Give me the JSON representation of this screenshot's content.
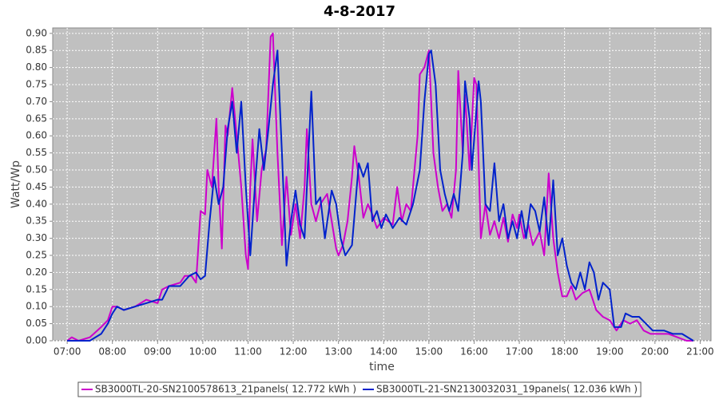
{
  "chart_data": {
    "type": "line",
    "title": "4-8-2017",
    "xlabel": "time",
    "ylabel": "Watt/Wp",
    "xlim": [
      6.68,
      21.24
    ],
    "ylim": [
      0,
      0.916
    ],
    "grid": true,
    "background": "#c0c0c0",
    "legend": "bottom",
    "xticks": [
      {
        "value": 7,
        "label": "07:00"
      },
      {
        "value": 8,
        "label": "08:00"
      },
      {
        "value": 9,
        "label": "09:00"
      },
      {
        "value": 10,
        "label": "10:00"
      },
      {
        "value": 11,
        "label": "11:00"
      },
      {
        "value": 12,
        "label": "12:00"
      },
      {
        "value": 13,
        "label": "13:00"
      },
      {
        "value": 14,
        "label": "14:00"
      },
      {
        "value": 15,
        "label": "15:00"
      },
      {
        "value": 16,
        "label": "16:00"
      },
      {
        "value": 17,
        "label": "17:00"
      },
      {
        "value": 18,
        "label": "18:00"
      },
      {
        "value": 19,
        "label": "19:00"
      },
      {
        "value": 20,
        "label": "20:00"
      },
      {
        "value": 21,
        "label": "21:00"
      }
    ],
    "yticks": [
      {
        "value": 0,
        "label": "0.00"
      },
      0.05,
      {
        "value": 0.1,
        "label": "0.10"
      },
      0.15,
      {
        "value": 0.2,
        "label": "0.20"
      },
      0.25,
      {
        "value": 0.3,
        "label": "0.30"
      },
      0.35,
      {
        "value": 0.4,
        "label": "0.40"
      },
      0.45,
      {
        "value": 0.5,
        "label": "0.50"
      },
      0.55,
      {
        "value": 0.6,
        "label": "0.60"
      },
      0.65,
      {
        "value": 0.7,
        "label": "0.70"
      },
      0.75,
      {
        "value": 0.8,
        "label": "0.80"
      },
      0.85,
      {
        "value": 0.9,
        "label": "0.90"
      }
    ],
    "series": [
      {
        "name": "SB3000TL-20-SN2100578613_21panels( 12.772 kWh )",
        "color": "#cc00cc",
        "x": [
          7.0,
          7.1,
          7.25,
          7.5,
          7.75,
          7.9,
          8.0,
          8.1,
          8.25,
          8.5,
          8.75,
          9.0,
          9.1,
          9.25,
          9.5,
          9.6,
          9.75,
          9.85,
          9.95,
          10.05,
          10.1,
          10.2,
          10.3,
          10.35,
          10.42,
          10.5,
          10.55,
          10.65,
          10.75,
          10.85,
          10.95,
          11.0,
          11.05,
          11.1,
          11.2,
          11.3,
          11.4,
          11.5,
          11.55,
          11.65,
          11.75,
          11.85,
          11.95,
          12.05,
          12.15,
          12.25,
          12.3,
          12.4,
          12.5,
          12.6,
          12.75,
          12.85,
          12.95,
          13.0,
          13.1,
          13.2,
          13.3,
          13.35,
          13.45,
          13.55,
          13.65,
          13.75,
          13.85,
          14.0,
          14.1,
          14.2,
          14.3,
          14.4,
          14.5,
          14.6,
          14.75,
          14.8,
          14.9,
          15.0,
          15.05,
          15.1,
          15.2,
          15.3,
          15.4,
          15.5,
          15.6,
          15.65,
          15.75,
          15.8,
          15.9,
          16.0,
          16.05,
          16.15,
          16.25,
          16.35,
          16.45,
          16.55,
          16.65,
          16.75,
          16.85,
          16.95,
          17.0,
          17.1,
          17.2,
          17.3,
          17.45,
          17.55,
          17.65,
          17.75,
          17.85,
          17.95,
          18.05,
          18.15,
          18.25,
          18.4,
          18.55,
          18.7,
          18.85,
          19.0,
          19.15,
          19.3,
          19.45,
          19.6,
          19.75,
          19.9,
          20.1,
          20.3,
          20.5,
          20.7,
          20.85
        ],
        "values": [
          0.0,
          0.01,
          0.0,
          0.01,
          0.04,
          0.06,
          0.1,
          0.1,
          0.09,
          0.1,
          0.12,
          0.11,
          0.15,
          0.16,
          0.17,
          0.19,
          0.19,
          0.17,
          0.38,
          0.37,
          0.5,
          0.45,
          0.65,
          0.45,
          0.27,
          0.63,
          0.6,
          0.74,
          0.6,
          0.45,
          0.25,
          0.21,
          0.45,
          0.59,
          0.35,
          0.5,
          0.56,
          0.89,
          0.9,
          0.55,
          0.28,
          0.48,
          0.31,
          0.4,
          0.3,
          0.45,
          0.62,
          0.4,
          0.35,
          0.4,
          0.43,
          0.35,
          0.27,
          0.25,
          0.28,
          0.35,
          0.48,
          0.57,
          0.48,
          0.36,
          0.4,
          0.37,
          0.33,
          0.36,
          0.35,
          0.34,
          0.45,
          0.35,
          0.4,
          0.38,
          0.6,
          0.78,
          0.8,
          0.85,
          0.7,
          0.55,
          0.45,
          0.38,
          0.4,
          0.36,
          0.5,
          0.79,
          0.55,
          0.72,
          0.5,
          0.77,
          0.75,
          0.3,
          0.4,
          0.31,
          0.35,
          0.3,
          0.36,
          0.29,
          0.37,
          0.33,
          0.37,
          0.3,
          0.34,
          0.28,
          0.32,
          0.25,
          0.49,
          0.3,
          0.2,
          0.13,
          0.13,
          0.16,
          0.12,
          0.14,
          0.15,
          0.09,
          0.07,
          0.06,
          0.03,
          0.06,
          0.05,
          0.06,
          0.03,
          0.02,
          0.02,
          0.02,
          0.01,
          0.0,
          0.0
        ]
      },
      {
        "name": "SB3000TL-21-SN2130032031_19panels( 12.036 kWh )",
        "color": "#0022cc",
        "x": [
          7.0,
          7.25,
          7.5,
          7.75,
          7.9,
          8.0,
          8.1,
          8.25,
          8.5,
          8.75,
          9.0,
          9.1,
          9.25,
          9.5,
          9.7,
          9.85,
          9.95,
          10.05,
          10.15,
          10.25,
          10.35,
          10.45,
          10.55,
          10.65,
          10.75,
          10.85,
          10.95,
          11.05,
          11.15,
          11.25,
          11.35,
          11.45,
          11.55,
          11.65,
          11.75,
          11.85,
          11.95,
          12.05,
          12.15,
          12.25,
          12.4,
          12.5,
          12.6,
          12.7,
          12.85,
          12.95,
          13.05,
          13.15,
          13.3,
          13.45,
          13.55,
          13.65,
          13.75,
          13.85,
          13.95,
          14.05,
          14.2,
          14.35,
          14.5,
          14.65,
          14.8,
          14.9,
          15.0,
          15.05,
          15.15,
          15.25,
          15.35,
          15.45,
          15.55,
          15.65,
          15.75,
          15.8,
          15.9,
          15.95,
          16.1,
          16.15,
          16.25,
          16.35,
          16.45,
          16.55,
          16.65,
          16.75,
          16.85,
          16.95,
          17.05,
          17.15,
          17.25,
          17.35,
          17.45,
          17.55,
          17.65,
          17.75,
          17.85,
          17.95,
          18.05,
          18.15,
          18.25,
          18.35,
          18.45,
          18.55,
          18.65,
          18.75,
          18.85,
          19.0,
          19.1,
          19.25,
          19.35,
          19.5,
          19.65,
          19.8,
          19.95,
          20.2,
          20.4,
          20.6,
          20.85
        ],
        "values": [
          0.0,
          0.0,
          0.0,
          0.02,
          0.05,
          0.08,
          0.1,
          0.09,
          0.1,
          0.11,
          0.12,
          0.12,
          0.16,
          0.16,
          0.19,
          0.2,
          0.18,
          0.19,
          0.35,
          0.48,
          0.4,
          0.45,
          0.62,
          0.7,
          0.55,
          0.7,
          0.45,
          0.25,
          0.45,
          0.62,
          0.5,
          0.62,
          0.75,
          0.85,
          0.55,
          0.22,
          0.35,
          0.44,
          0.34,
          0.3,
          0.73,
          0.4,
          0.42,
          0.3,
          0.44,
          0.4,
          0.3,
          0.25,
          0.28,
          0.52,
          0.48,
          0.52,
          0.35,
          0.38,
          0.33,
          0.37,
          0.33,
          0.36,
          0.34,
          0.4,
          0.5,
          0.7,
          0.84,
          0.85,
          0.75,
          0.5,
          0.43,
          0.38,
          0.43,
          0.38,
          0.55,
          0.76,
          0.65,
          0.5,
          0.76,
          0.7,
          0.4,
          0.38,
          0.52,
          0.35,
          0.4,
          0.3,
          0.35,
          0.3,
          0.38,
          0.3,
          0.4,
          0.38,
          0.32,
          0.42,
          0.28,
          0.47,
          0.25,
          0.3,
          0.22,
          0.17,
          0.15,
          0.2,
          0.15,
          0.23,
          0.2,
          0.12,
          0.17,
          0.15,
          0.04,
          0.04,
          0.08,
          0.07,
          0.07,
          0.05,
          0.03,
          0.03,
          0.02,
          0.02,
          0.0
        ]
      }
    ]
  }
}
